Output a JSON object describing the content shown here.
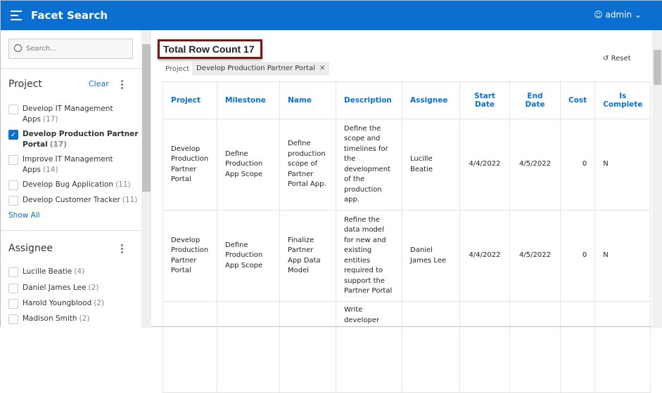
{
  "header": {
    "title": "Facet Search",
    "user": "admin"
  },
  "sidebar": {
    "search_placeholder": "Search...",
    "project": {
      "title": "Project",
      "clear": "Clear",
      "show_all": "Show All",
      "items": [
        {
          "label": "Develop IT Management Apps",
          "count": "(17)",
          "checked": false
        },
        {
          "label": "Develop Production Partner Portal",
          "count": "(17)",
          "checked": true
        },
        {
          "label": "Improve IT Management Apps",
          "count": "(14)",
          "checked": false
        },
        {
          "label": "Develop Bug Application",
          "count": "(11)",
          "checked": false
        },
        {
          "label": "Develop Customer Tracker",
          "count": "(11)",
          "checked": false
        }
      ]
    },
    "assignee": {
      "title": "Assignee",
      "items": [
        {
          "label": "Lucille Beatie",
          "count": "(4)"
        },
        {
          "label": "Daniel James Lee",
          "count": "(2)"
        },
        {
          "label": "Harold Youngblood",
          "count": "(2)"
        },
        {
          "label": "Madison Smith",
          "count": "(2)"
        }
      ]
    }
  },
  "main": {
    "total": "Total Row Count 17",
    "filter_label": "Project",
    "filter_value": "Develop Production Partner Portal",
    "reset": "Reset",
    "columns": [
      "Project",
      "Milestone",
      "Name",
      "Description",
      "Assignee",
      "Start Date",
      "End Date",
      "Cost",
      "Is Complete"
    ],
    "rows": [
      [
        "Develop Production Partner Portal",
        "Define Production App Scope",
        "Define production scope of Partner Portal App.",
        "Define the scope and timelines for the development of the production app.",
        "Lucille Beatie",
        "4/4/2022",
        "4/5/2022",
        "0",
        "N"
      ],
      [
        "Develop Production Partner Portal",
        "Define Production App Scope",
        "Finalize Partner App Data Model",
        "Refine the data model for new and existing entities required to support the Partner Portal",
        "Daniel James Lee",
        "4/4/2022",
        "4/5/2022",
        "0",
        "N"
      ],
      [
        "",
        "",
        "",
        "Write developer",
        "",
        "",
        "",
        "",
        ""
      ]
    ]
  }
}
